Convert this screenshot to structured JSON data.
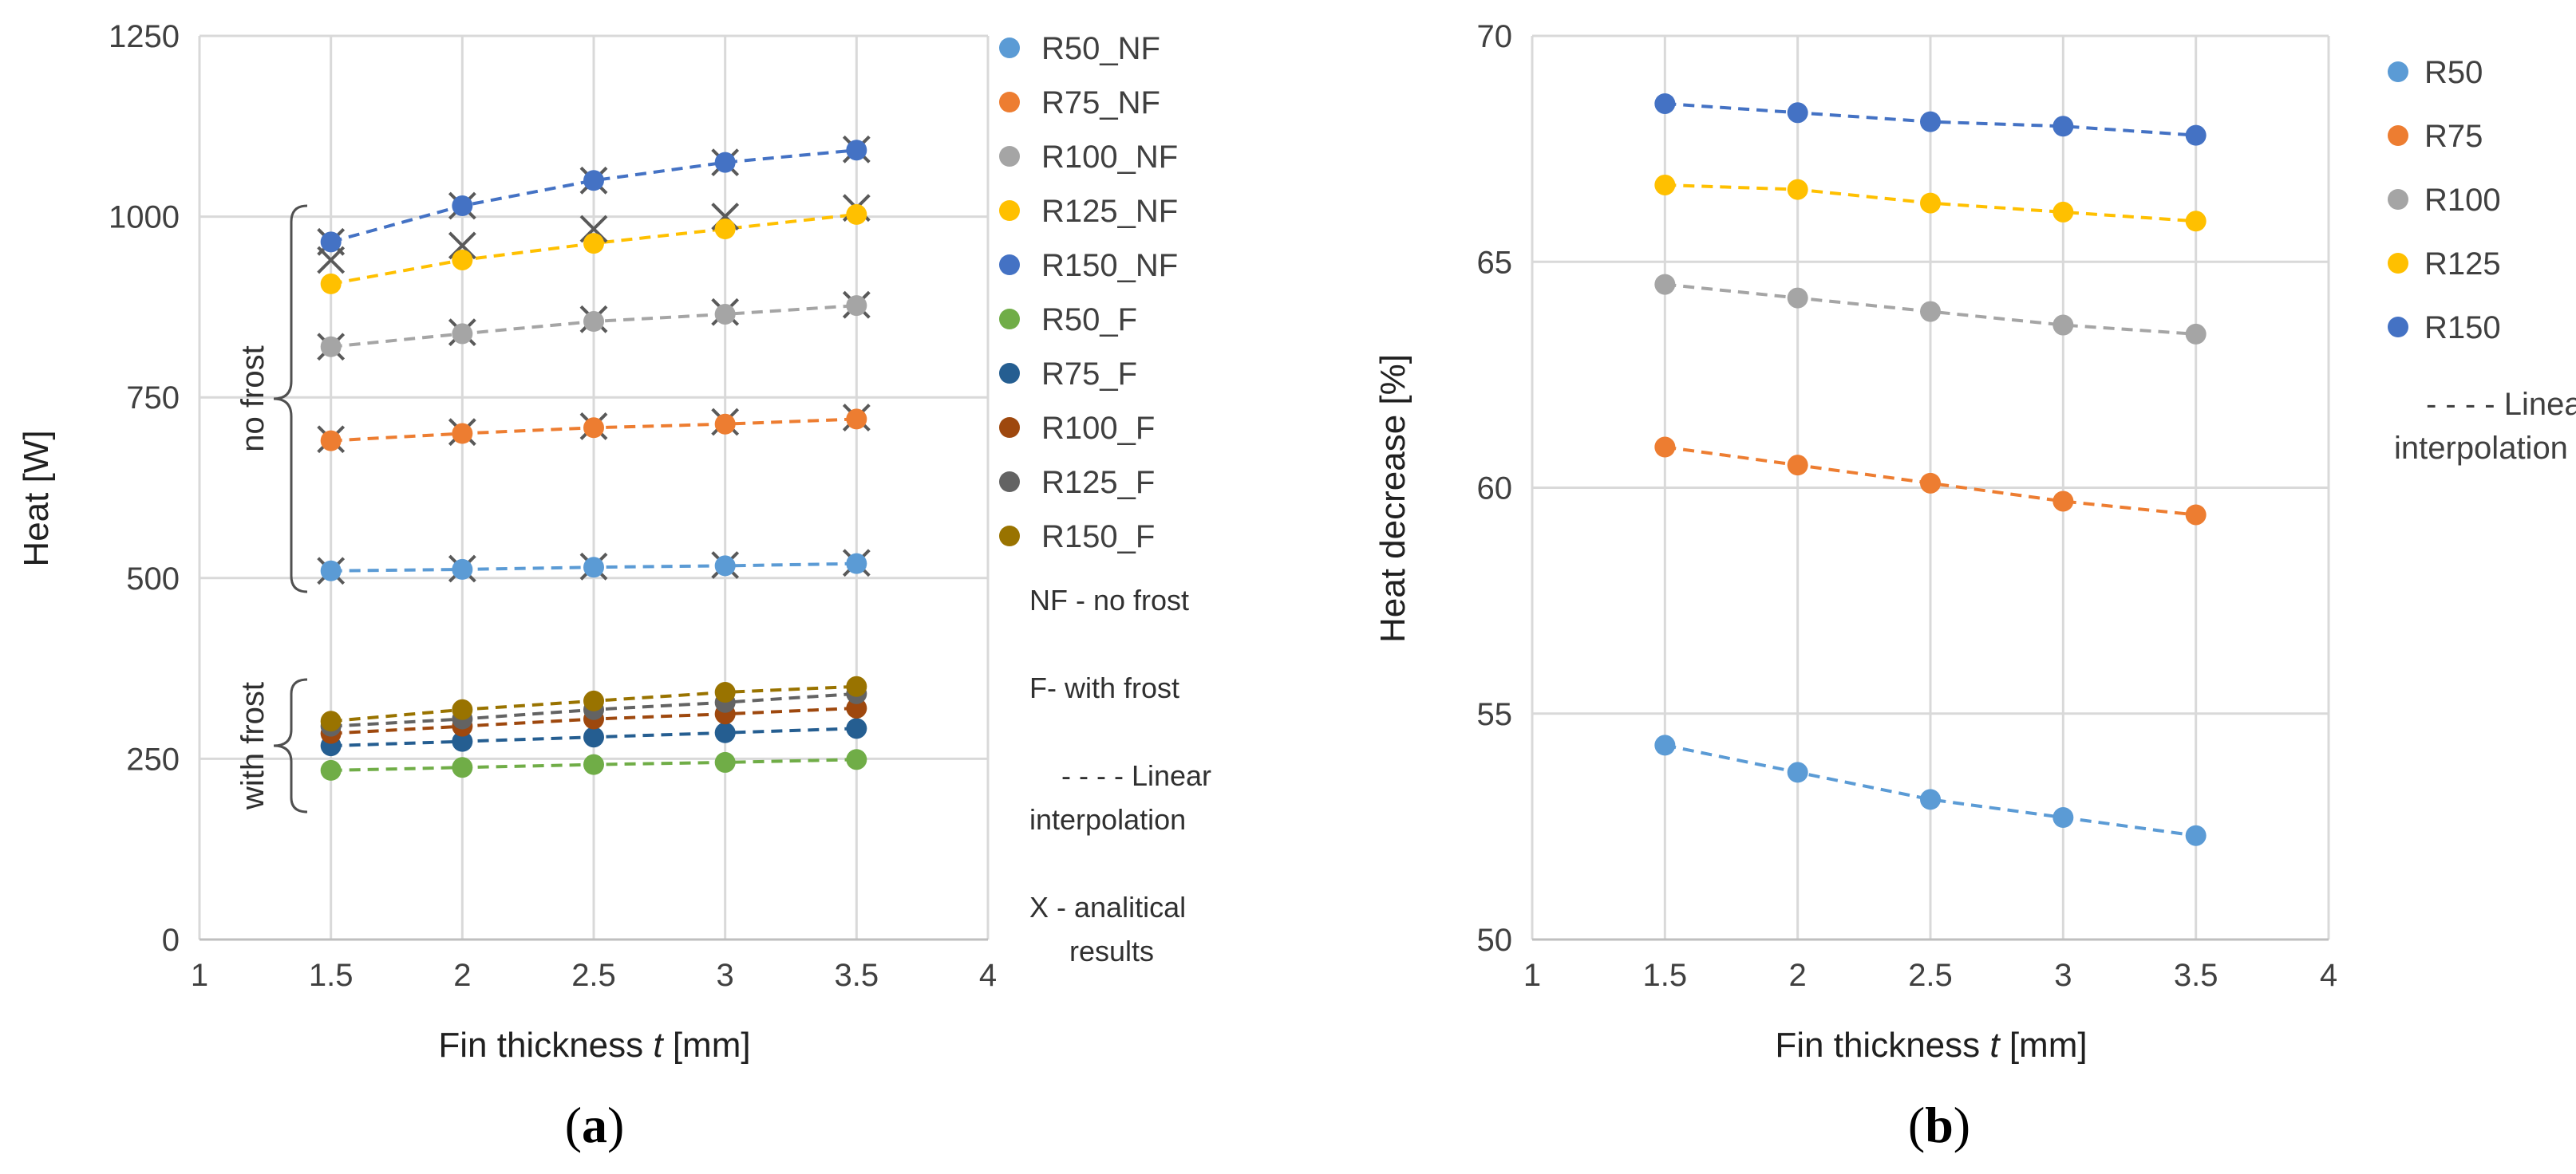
{
  "panels": {
    "a": {
      "label_open": "(",
      "label_letter": "a",
      "label_close": ")"
    },
    "b": {
      "label_open": "(",
      "label_letter": "b",
      "label_close": ")"
    }
  },
  "notes": {
    "nf": "NF - no frost",
    "f": "F- with frost",
    "linear_a_1": "- - - - Linear",
    "linear_a_2": "interpolation",
    "x_1": "X - analitical",
    "x_2": "results",
    "linear_b_1": "- - - - Linear",
    "linear_b_2": "interpolation"
  },
  "braces": {
    "no_frost": "no frost",
    "with_frost": "with frost"
  },
  "chart_data": [
    {
      "type": "line",
      "panel": "a",
      "xlabel_main": "Fin thickness ",
      "xlabel_var": "t",
      "xlabel_unit": " [mm]",
      "ylabel": "Heat [W]",
      "xlim": [
        1,
        4
      ],
      "ylim": [
        0,
        1250
      ],
      "xticks": [
        1,
        1.5,
        2,
        2.5,
        3,
        3.5,
        4
      ],
      "yticks": [
        0,
        250,
        500,
        750,
        1000,
        1250
      ],
      "x": [
        1.5,
        2,
        2.5,
        3,
        3.5
      ],
      "grid": true,
      "legend_position": "right",
      "series": [
        {
          "name": "R50_NF",
          "color": "#5B9BD5",
          "values": [
            510,
            512,
            515,
            517,
            520
          ],
          "analytical": [
            510,
            513,
            516,
            518,
            521
          ]
        },
        {
          "name": "R75_NF",
          "color": "#ED7D31",
          "values": [
            690,
            700,
            708,
            713,
            720
          ],
          "analytical": [
            692,
            702,
            710,
            716,
            722
          ]
        },
        {
          "name": "R100_NF",
          "color": "#A5A5A5",
          "values": [
            820,
            838,
            855,
            865,
            877
          ],
          "analytical": [
            820,
            840,
            858,
            868,
            878
          ]
        },
        {
          "name": "R125_NF",
          "color": "#FFC000",
          "values": [
            907,
            940,
            963,
            983,
            1003
          ],
          "analytical": [
            940,
            960,
            983,
            1000,
            1012
          ]
        },
        {
          "name": "R150_NF",
          "color": "#4472C4",
          "values": [
            965,
            1015,
            1050,
            1075,
            1092
          ],
          "analytical": [
            965,
            1015,
            1050,
            1075,
            1093
          ]
        },
        {
          "name": "R50_F",
          "color": "#70AD47",
          "values": [
            234,
            238,
            242,
            245,
            249
          ]
        },
        {
          "name": "R75_F",
          "color": "#255E91",
          "values": [
            268,
            274,
            280,
            286,
            292
          ]
        },
        {
          "name": "R100_F",
          "color": "#9E480E",
          "values": [
            285,
            295,
            305,
            312,
            320
          ]
        },
        {
          "name": "R125_F",
          "color": "#636363",
          "values": [
            295,
            305,
            318,
            328,
            340
          ]
        },
        {
          "name": "R150_F",
          "color": "#997300",
          "values": [
            302,
            318,
            330,
            342,
            350
          ]
        }
      ]
    },
    {
      "type": "line",
      "panel": "b",
      "xlabel_main": "Fin thickness ",
      "xlabel_var": "t",
      "xlabel_unit": " [mm]",
      "ylabel": "Heat decrease [%]",
      "xlim": [
        1,
        4
      ],
      "ylim": [
        50,
        70
      ],
      "xticks": [
        1,
        1.5,
        2,
        2.5,
        3,
        3.5,
        4
      ],
      "yticks": [
        50,
        55,
        60,
        65,
        70
      ],
      "x": [
        1.5,
        2,
        2.5,
        3,
        3.5
      ],
      "grid": true,
      "legend_position": "right",
      "series": [
        {
          "name": "R50",
          "color": "#5B9BD5",
          "values": [
            54.3,
            53.7,
            53.1,
            52.7,
            52.3
          ]
        },
        {
          "name": "R75",
          "color": "#ED7D31",
          "values": [
            60.9,
            60.5,
            60.1,
            59.7,
            59.4
          ]
        },
        {
          "name": "R100",
          "color": "#A5A5A5",
          "values": [
            64.5,
            64.2,
            63.9,
            63.6,
            63.4
          ]
        },
        {
          "name": "R125",
          "color": "#FFC000",
          "values": [
            66.7,
            66.6,
            66.3,
            66.1,
            65.9
          ]
        },
        {
          "name": "R150",
          "color": "#4472C4",
          "values": [
            68.5,
            68.3,
            68.1,
            68.0,
            67.8
          ]
        }
      ]
    }
  ]
}
